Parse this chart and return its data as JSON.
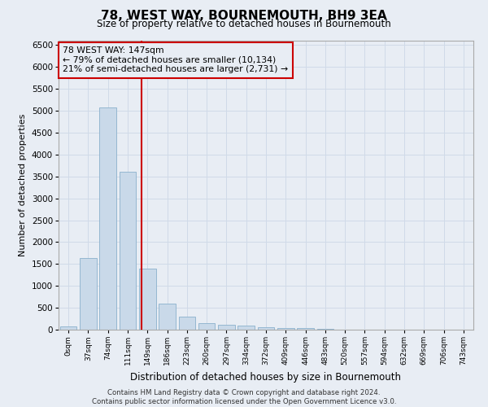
{
  "title": "78, WEST WAY, BOURNEMOUTH, BH9 3EA",
  "subtitle": "Size of property relative to detached houses in Bournemouth",
  "xlabel": "Distribution of detached houses by size in Bournemouth",
  "ylabel": "Number of detached properties",
  "footer_line1": "Contains HM Land Registry data © Crown copyright and database right 2024.",
  "footer_line2": "Contains public sector information licensed under the Open Government Licence v3.0.",
  "property_label": "78 WEST WAY: 147sqm",
  "annotation_line1": "← 79% of detached houses are smaller (10,134)",
  "annotation_line2": "21% of semi-detached houses are larger (2,731) →",
  "bar_color": "#c9d9e9",
  "bar_edge_color": "#8ab0cc",
  "vline_color": "#cc0000",
  "annotation_box_color": "#cc0000",
  "grid_color": "#d0dae8",
  "bg_color": "#e8edf4",
  "categories": [
    "0sqm",
    "37sqm",
    "74sqm",
    "111sqm",
    "149sqm",
    "186sqm",
    "223sqm",
    "260sqm",
    "297sqm",
    "334sqm",
    "372sqm",
    "409sqm",
    "446sqm",
    "483sqm",
    "520sqm",
    "557sqm",
    "594sqm",
    "632sqm",
    "669sqm",
    "706sqm",
    "743sqm"
  ],
  "values": [
    70,
    1630,
    5080,
    3600,
    1400,
    600,
    290,
    150,
    120,
    90,
    60,
    40,
    40,
    10,
    5,
    5,
    3,
    2,
    2,
    2,
    2
  ],
  "ylim": [
    0,
    6600
  ],
  "yticks": [
    0,
    500,
    1000,
    1500,
    2000,
    2500,
    3000,
    3500,
    4000,
    4500,
    5000,
    5500,
    6000,
    6500
  ],
  "vline_x": 3.72,
  "figsize": [
    6.0,
    5.0
  ],
  "dpi": 100
}
